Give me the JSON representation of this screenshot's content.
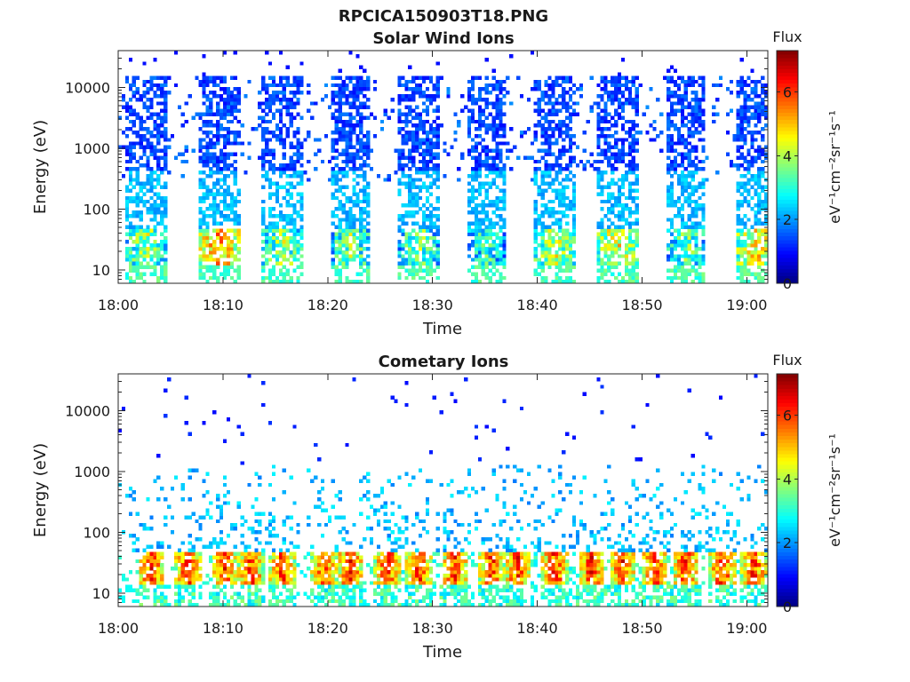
{
  "figure_title": "RPCICA150903T18.PNG",
  "chart_data": [
    {
      "type": "heatmap",
      "title": "Solar Wind Ions",
      "xlabel": "Time",
      "ylabel": "Energy (eV)",
      "y_scale": "log",
      "ylim": [
        6,
        40000
      ],
      "x_range": [
        "18:00",
        "19:02"
      ],
      "x_ticks": [
        "18:00",
        "18:10",
        "18:20",
        "18:30",
        "18:40",
        "18:50",
        "19:00"
      ],
      "y_ticks": [
        "10",
        "100",
        "1000",
        "10000"
      ],
      "colorbar": {
        "label": "Flux",
        "unit": "eV⁻¹cm⁻²sr⁻¹s⁻¹",
        "range": [
          0,
          7.3
        ],
        "ticks": [
          "0",
          "2",
          "4",
          "6"
        ],
        "colormap": "jet"
      },
      "bursts_center_min": [
        2.5,
        9.5,
        15.5,
        22.0,
        28.5,
        35.0,
        41.5,
        47.5,
        54.0,
        60.8
      ],
      "low_energy_peak_flux": [
        5.0,
        6.3,
        5.0,
        4.8,
        4.7,
        4.2,
        5.3,
        5.6,
        4.6,
        5.8
      ],
      "grid": false
    },
    {
      "type": "heatmap",
      "title": "Cometary Ions",
      "xlabel": "Time",
      "ylabel": "Energy (eV)",
      "y_scale": "log",
      "ylim": [
        6,
        40000
      ],
      "x_range": [
        "18:00",
        "19:02"
      ],
      "x_ticks": [
        "18:00",
        "18:10",
        "18:20",
        "18:30",
        "18:40",
        "18:50",
        "19:00"
      ],
      "y_ticks": [
        "10",
        "100",
        "1000",
        "10000"
      ],
      "colorbar": {
        "label": "Flux",
        "unit": "eV⁻¹cm⁻²sr⁻¹s⁻¹",
        "range": [
          0,
          7.3
        ],
        "ticks": [
          "0",
          "2",
          "4",
          "6"
        ],
        "colormap": "jet"
      },
      "bursts_center_min": [
        3.0,
        6.5,
        10.0,
        12.5,
        15.5,
        19.5,
        22.0,
        25.5,
        28.5,
        32.0,
        35.5,
        38.0,
        41.5,
        45.0,
        48.0,
        51.0,
        54.0,
        57.5,
        60.5
      ],
      "peak_energy_ev": 25,
      "peak_flux": 7.0,
      "grid": false
    }
  ]
}
